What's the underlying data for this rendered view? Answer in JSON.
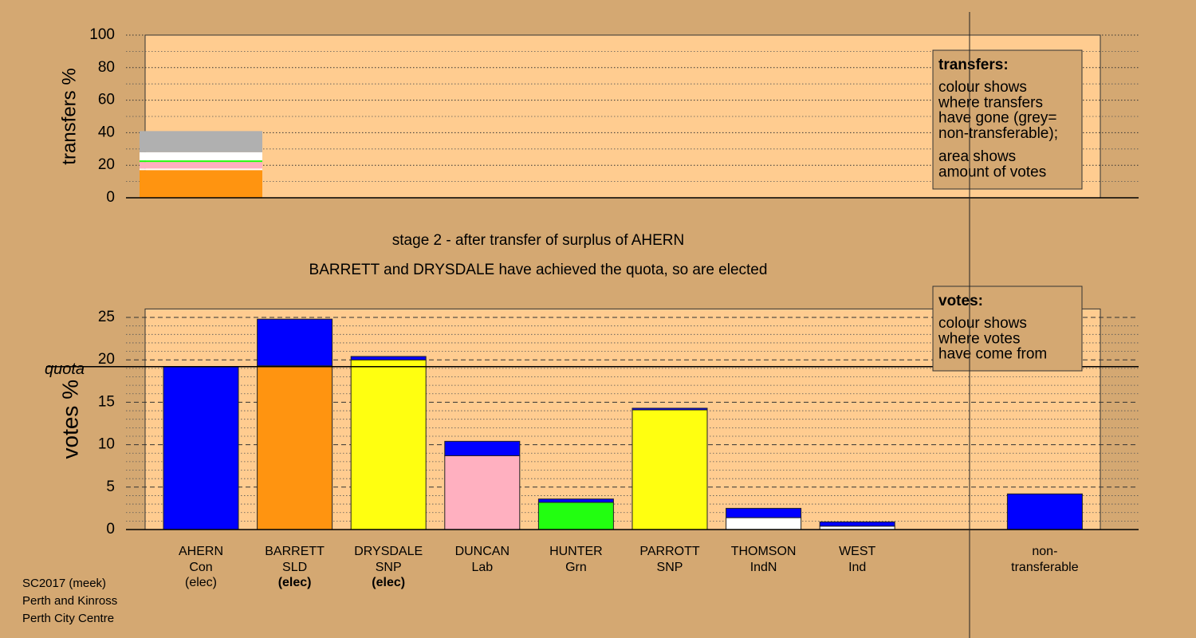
{
  "header_lines": [
    "stage 2 - after transfer of surplus of AHERN",
    "BARRETT and DRYSDALE have achieved the quota, so are elected"
  ],
  "footer_lines": [
    "SC2017 (meek)",
    "Perth and Kinross",
    "Perth City Centre"
  ],
  "chart_data": [
    {
      "type": "stacked-bar",
      "y_label": "transfers %",
      "ylim": [
        0,
        100
      ],
      "yticks": [
        0,
        20,
        40,
        60,
        80,
        100
      ],
      "minor_yticks": [
        10,
        30,
        50,
        70,
        90
      ],
      "grid": true,
      "series": [
        {
          "color": "#ff9410",
          "values": [
            17
          ]
        },
        {
          "color": "#ffffff",
          "values": [
            1
          ]
        },
        {
          "color": "#ffb0c0",
          "values": [
            4
          ]
        },
        {
          "color": "#22ff10",
          "values": [
            1
          ]
        },
        {
          "color": "#ffffff",
          "values": [
            5
          ]
        },
        {
          "color": "#b0b0b0",
          "values": [
            13
          ]
        }
      ],
      "legend": {
        "title": "transfers:",
        "lines": [
          "colour shows",
          "where transfers",
          "have gone (grey=",
          "non-transferable);",
          "area shows",
          "amount of votes"
        ],
        "position": "upper right"
      }
    },
    {
      "type": "stacked-bar",
      "y_label": "votes %",
      "categories": [
        "AHERN",
        "BARRETT",
        "DRYSDALE",
        "DUNCAN",
        "HUNTER",
        "PARROTT",
        "THOMSON",
        "WEST",
        "non-transferable"
      ],
      "parties": [
        "Con",
        "SLD",
        "SNP",
        "Lab",
        "Grn",
        "SNP",
        "IndN",
        "Ind",
        null
      ],
      "status": [
        "(elec)",
        "(elec)",
        "(elec)",
        null,
        null,
        null,
        null,
        null,
        null
      ],
      "status_bold": [
        false,
        true,
        true,
        false,
        false,
        false,
        false,
        false,
        false
      ],
      "ylim": [
        0,
        26
      ],
      "yticks": [
        0,
        5,
        10,
        15,
        20,
        25
      ],
      "minor_yticks": [
        1,
        2,
        3,
        4,
        6,
        7,
        8,
        9,
        11,
        12,
        13,
        14,
        16,
        17,
        18,
        19,
        21,
        22,
        23,
        24
      ],
      "grid": true,
      "quota": {
        "value": 19.2,
        "label": "quota"
      },
      "series": [
        {
          "colors": [
            "#0000ff",
            "#ff9410",
            "#ffff10",
            "#ffb0c0",
            "#22ff10",
            "#ffff10",
            "#ffffff",
            "#ffffff",
            null
          ],
          "values": [
            19.2,
            19.3,
            20.0,
            8.7,
            3.2,
            14.1,
            1.4,
            0.4,
            null
          ]
        },
        {
          "color": "#0000ff",
          "values": [
            null,
            5.5,
            0.4,
            1.7,
            0.4,
            0.2,
            1.1,
            0.5,
            4.2
          ]
        }
      ],
      "legend": {
        "title": "votes:",
        "lines": [
          "colour shows",
          "where votes",
          "have come from"
        ],
        "position": "upper right"
      }
    }
  ]
}
